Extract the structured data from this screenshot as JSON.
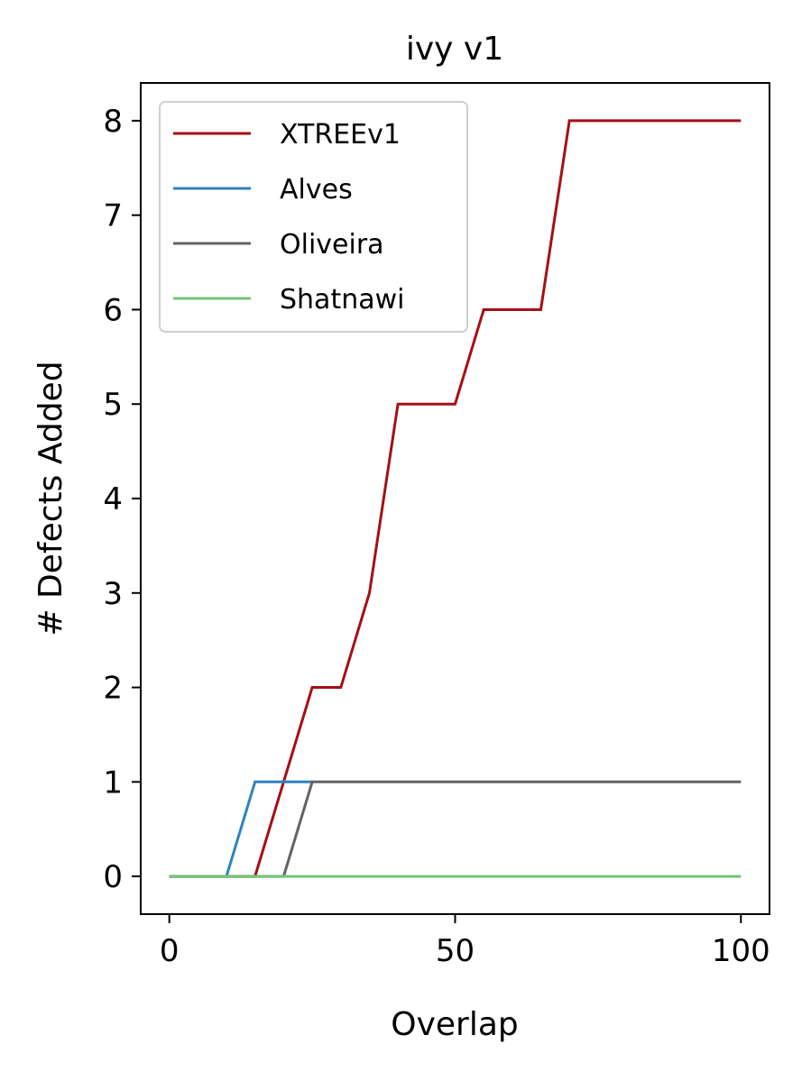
{
  "chart_data": {
    "type": "line",
    "title": "ivy v1",
    "xlabel": "Overlap",
    "ylabel": "# Defects Added",
    "xlim": [
      -5,
      105
    ],
    "ylim": [
      -0.4,
      8.4
    ],
    "xticks": [
      0,
      50,
      100
    ],
    "yticks": [
      0,
      1,
      2,
      3,
      4,
      5,
      6,
      7,
      8
    ],
    "grid": false,
    "legend_position": "top-left",
    "series": [
      {
        "name": "XTREEv1",
        "color": "#a50f15",
        "x": [
          0,
          5,
          10,
          15,
          20,
          25,
          30,
          35,
          40,
          45,
          50,
          55,
          60,
          65,
          70,
          75,
          80,
          85,
          90,
          95,
          100
        ],
        "y": [
          0,
          0,
          0,
          0,
          1,
          2,
          2,
          3,
          5,
          5,
          5,
          6,
          6,
          6,
          8,
          8,
          8,
          8,
          8,
          8,
          8
        ]
      },
      {
        "name": "Alves",
        "color": "#3182bd",
        "x": [
          0,
          5,
          10,
          15,
          20,
          25
        ],
        "y": [
          0,
          0,
          0,
          1,
          1,
          1
        ]
      },
      {
        "name": "Oliveira",
        "color": "#636363",
        "x": [
          0,
          5,
          10,
          15,
          20,
          25,
          30,
          35,
          40,
          45,
          50,
          55,
          60,
          65,
          70,
          75,
          80,
          85,
          90,
          95,
          100
        ],
        "y": [
          0,
          0,
          0,
          0,
          0,
          1,
          1,
          1,
          1,
          1,
          1,
          1,
          1,
          1,
          1,
          1,
          1,
          1,
          1,
          1,
          1
        ]
      },
      {
        "name": "Shatnawi",
        "color": "#74c476",
        "x": [
          0,
          5,
          10,
          15,
          20,
          25,
          30,
          35,
          40,
          45,
          50,
          55,
          60,
          65,
          70,
          75,
          80,
          85,
          90,
          95,
          100
        ],
        "y": [
          0,
          0,
          0,
          0,
          0,
          0,
          0,
          0,
          0,
          0,
          0,
          0,
          0,
          0,
          0,
          0,
          0,
          0,
          0,
          0,
          0
        ]
      }
    ]
  }
}
